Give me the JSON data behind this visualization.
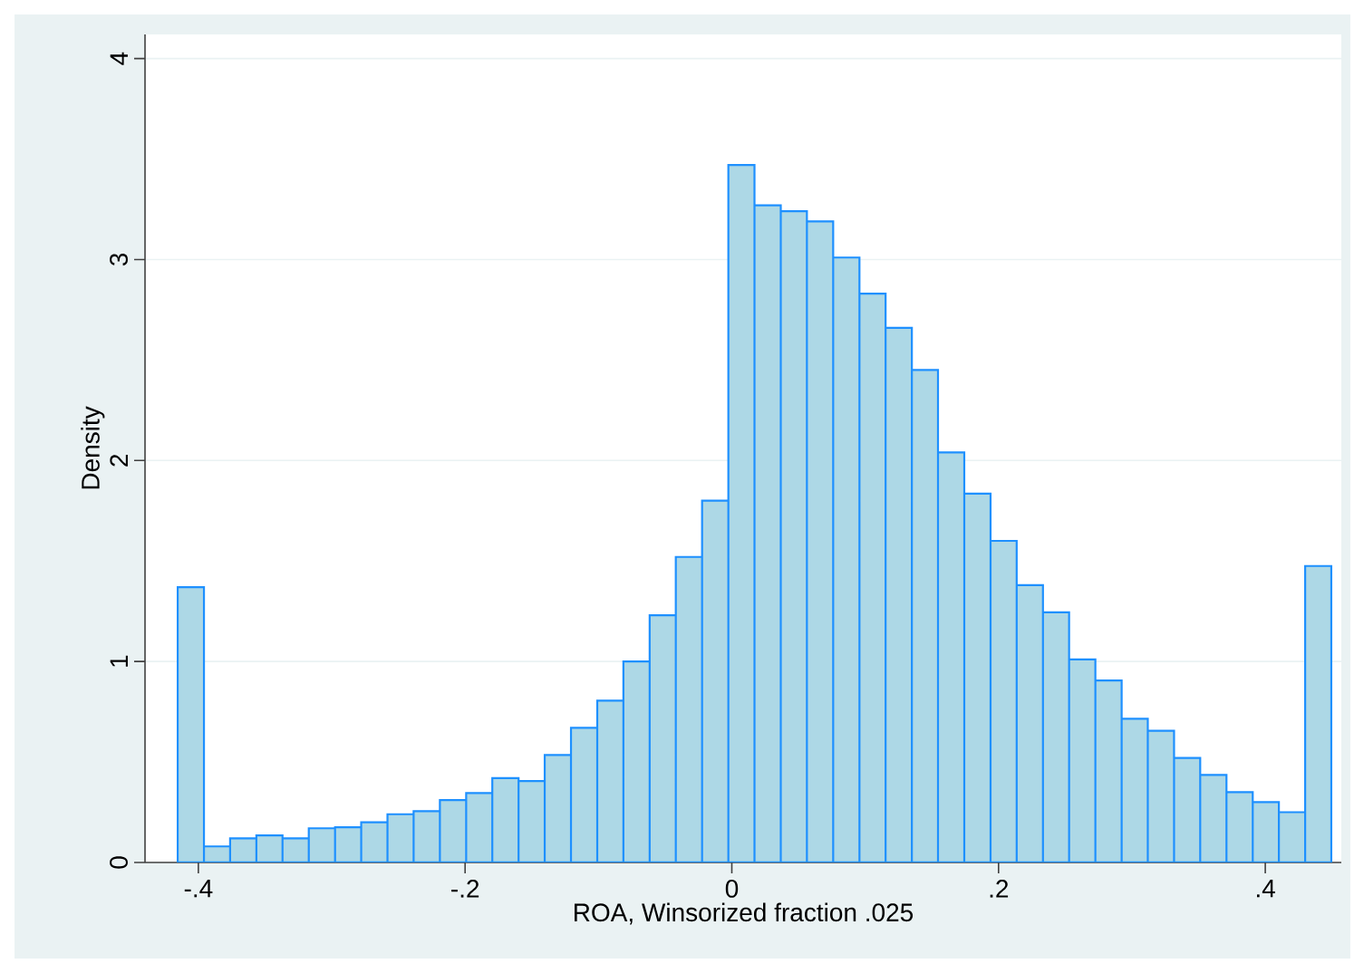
{
  "chart_data": {
    "type": "histogram",
    "xlabel": "ROA, Winsorized fraction .025",
    "ylabel": "Density",
    "color": "#add8e6",
    "bins": [
      -0.4155,
      -0.3958,
      -0.3762,
      -0.3565,
      -0.3369,
      -0.3172,
      -0.2975,
      -0.2779,
      -0.2582,
      -0.2386,
      -0.2189,
      -0.1992,
      -0.1796,
      -0.1599,
      -0.1403,
      -0.1206,
      -0.1009,
      -0.0813,
      -0.0616,
      -0.042,
      -0.0223,
      -0.0026,
      0.017,
      0.0367,
      0.0563,
      0.076,
      0.0957,
      0.1153,
      0.135,
      0.1546,
      0.1743,
      0.194,
      0.2136,
      0.2333,
      0.2529,
      0.2726,
      0.2923,
      0.3119,
      0.3316,
      0.3512,
      0.3709,
      0.3906,
      0.4102,
      0.4299,
      0.4495
    ],
    "values": [
      1.37,
      0.08,
      0.12,
      0.135,
      0.12,
      0.17,
      0.175,
      0.2,
      0.24,
      0.255,
      0.31,
      0.345,
      0.42,
      0.405,
      0.535,
      0.67,
      0.805,
      1.0,
      1.23,
      1.52,
      1.8,
      3.47,
      3.27,
      3.24,
      3.19,
      3.01,
      2.83,
      2.66,
      2.45,
      2.04,
      1.835,
      1.6,
      1.38,
      1.245,
      1.01,
      0.905,
      0.715,
      0.655,
      0.52,
      0.435,
      0.35,
      0.3,
      0.25,
      1.475
    ],
    "xlim": [
      -0.44,
      0.457
    ],
    "ylim": [
      0,
      4.12
    ],
    "xticks": [
      {
        "value": -0.4,
        "label": "-.4"
      },
      {
        "value": -0.2,
        "label": "-.2"
      },
      0,
      {
        "value": 0.2,
        "label": ".2"
      },
      {
        "value": 0.4,
        "label": ".4"
      }
    ],
    "yticks": [
      0,
      1,
      2,
      3,
      4
    ],
    "grid": "y"
  }
}
